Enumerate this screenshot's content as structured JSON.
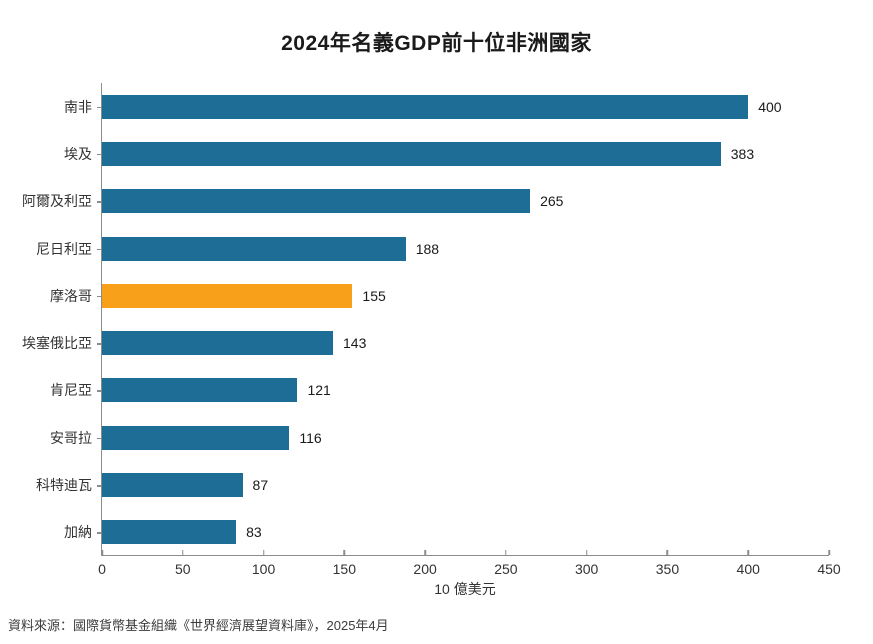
{
  "chart_data": {
    "type": "bar",
    "orientation": "horizontal",
    "title": "2024年名義GDP前十位非洲國家",
    "categories": [
      "南非",
      "埃及",
      "阿爾及利亞",
      "尼日利亞",
      "摩洛哥",
      "埃塞俄比亞",
      "肯尼亞",
      "安哥拉",
      "科特迪瓦",
      "加納"
    ],
    "values": [
      400,
      383,
      265,
      188,
      155,
      143,
      121,
      116,
      87,
      83
    ],
    "value_labels_shown": true,
    "xlabel": "10 億美元",
    "xlim": [
      0,
      450
    ],
    "xticks": [
      0,
      50,
      100,
      150,
      200,
      250,
      300,
      350,
      400,
      450
    ],
    "grid": false,
    "legend": "none",
    "bar_color": "#1d6d96",
    "highlight_index": 4,
    "highlight_color": "#f9a01b",
    "axis_color": "#8c8c8c"
  },
  "source": "資料來源：國際貨幣基金組織《世界經濟展望資料庫》，2025年4月"
}
